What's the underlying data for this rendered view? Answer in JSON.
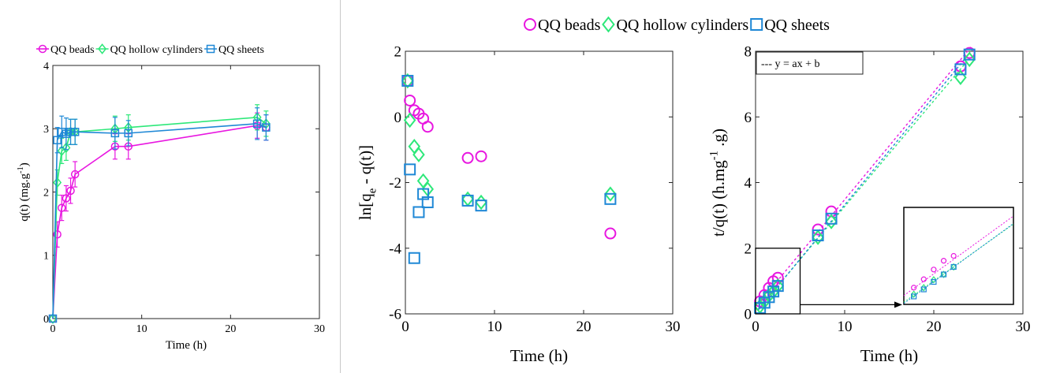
{
  "colors": {
    "beads": "#e817e0",
    "hollow": "#2ee87a",
    "sheets": "#1f88d6"
  },
  "chart_data": [
    {
      "type": "line",
      "panel": "left",
      "xlabel": "Time (h)",
      "ylabel_main": "q(t) (mg.g",
      "ylabel_sup": "-1",
      "ylabel_end": ")",
      "xlim": [
        0,
        30
      ],
      "ylim": [
        0,
        4
      ],
      "xticks": [
        "0",
        "10",
        "20",
        "30"
      ],
      "yticks": [
        "0",
        "1",
        "2",
        "3",
        "4"
      ],
      "legend": [
        "QQ beads",
        "QQ hollow cylinders",
        "QQ sheets"
      ],
      "legend_position": "top",
      "grid": false,
      "series": [
        {
          "name": "QQ beads",
          "marker": "circle",
          "x": [
            0,
            0.5,
            1,
            1.5,
            2,
            2.5,
            7,
            8.5,
            23,
            24
          ],
          "y": [
            0,
            1.33,
            1.75,
            1.9,
            2.02,
            2.28,
            2.72,
            2.72,
            3.05,
            3.02
          ],
          "err": [
            0,
            0.2,
            0.2,
            0.2,
            0.2,
            0.2,
            0.2,
            0.2,
            0.2,
            0.2
          ]
        },
        {
          "name": "QQ hollow cylinders",
          "marker": "diamond",
          "x": [
            0,
            0.5,
            1,
            1.5,
            2,
            2.5,
            7,
            8.5,
            23,
            24
          ],
          "y": [
            0,
            2.15,
            2.65,
            2.7,
            2.95,
            2.95,
            3.0,
            3.02,
            3.18,
            3.08
          ],
          "err": [
            0,
            0.2,
            0.2,
            0.2,
            0.2,
            0.2,
            0.2,
            0.2,
            0.2,
            0.2
          ]
        },
        {
          "name": "QQ sheets",
          "marker": "square",
          "x": [
            0,
            0.5,
            1,
            1.5,
            2,
            2.5,
            7,
            8.5,
            23,
            24
          ],
          "y": [
            0,
            2.82,
            2.95,
            2.92,
            2.95,
            2.95,
            2.93,
            2.93,
            3.08,
            3.02
          ],
          "err": [
            0,
            0.2,
            0.25,
            0.25,
            0.2,
            0.2,
            0.25,
            0.2,
            0.25,
            0.2
          ]
        }
      ]
    },
    {
      "type": "scatter",
      "panel": "middle",
      "xlabel": "Time (h)",
      "ylabel_main": "ln[q",
      "ylabel_sub": "e",
      "ylabel_end": " - q(t)]",
      "xlim": [
        0,
        30
      ],
      "ylim": [
        -6,
        2
      ],
      "xticks": [
        "0",
        "10",
        "20",
        "30"
      ],
      "yticks": [
        "-6",
        "-4",
        "-2",
        "0",
        "2"
      ],
      "grid": false,
      "series": [
        {
          "name": "QQ beads",
          "marker": "circle",
          "x": [
            0.25,
            0.5,
            1,
            1.5,
            2,
            2.5,
            7,
            8.5,
            23
          ],
          "y": [
            1.1,
            0.5,
            0.2,
            0.1,
            -0.05,
            -0.3,
            -1.25,
            -1.2,
            -3.55
          ]
        },
        {
          "name": "QQ hollow cylinders",
          "marker": "diamond",
          "x": [
            0.25,
            0.5,
            1,
            1.5,
            2,
            2.5,
            7,
            8.5,
            23
          ],
          "y": [
            1.1,
            -0.1,
            -0.9,
            -1.15,
            -1.95,
            -2.2,
            -2.5,
            -2.6,
            -2.35
          ]
        },
        {
          "name": "QQ sheets",
          "marker": "square",
          "x": [
            0.25,
            0.5,
            1,
            1.5,
            2,
            2.5,
            7,
            8.5,
            23
          ],
          "y": [
            1.1,
            -1.6,
            -4.3,
            -2.9,
            -2.35,
            -2.6,
            -2.55,
            -2.7,
            -2.5
          ]
        }
      ]
    },
    {
      "type": "scatter",
      "panel": "right",
      "xlabel": "Time (h)",
      "ylabel_main": "t/q(t) (h.mg",
      "ylabel_sup": "-1",
      "ylabel_end": " .g)",
      "xlim": [
        0,
        30
      ],
      "ylim": [
        0,
        8
      ],
      "xticks": [
        "0",
        "10",
        "20",
        "30"
      ],
      "yticks": [
        "0",
        "2",
        "4",
        "6",
        "8"
      ],
      "annotation": "--- y = ax + b",
      "grid": false,
      "series": [
        {
          "name": "QQ beads",
          "marker": "circle",
          "x": [
            0.5,
            1,
            1.5,
            2,
            2.5,
            7,
            8.5,
            23,
            24
          ],
          "y": [
            0.38,
            0.57,
            0.79,
            0.99,
            1.1,
            2.57,
            3.12,
            7.54,
            7.95
          ],
          "fit": {
            "a": 0.328,
            "b": 0.2
          }
        },
        {
          "name": "QQ hollow cylinders",
          "marker": "diamond",
          "x": [
            0.5,
            1,
            1.5,
            2,
            2.5,
            7,
            8.5,
            23,
            24
          ],
          "y": [
            0.23,
            0.38,
            0.56,
            0.68,
            0.85,
            2.33,
            2.81,
            7.2,
            7.75
          ],
          "fit": {
            "a": 0.322,
            "b": 0.05
          }
        },
        {
          "name": "QQ sheets",
          "marker": "square",
          "x": [
            0.5,
            1,
            1.5,
            2,
            2.5,
            7,
            8.5,
            23,
            24
          ],
          "y": [
            0.18,
            0.34,
            0.51,
            0.68,
            0.85,
            2.39,
            2.9,
            7.45,
            7.9
          ],
          "fit": {
            "a": 0.33,
            "b": 0.02
          }
        }
      ],
      "inset_range": {
        "x": [
          0,
          5
        ],
        "y": [
          0,
          2
        ]
      }
    }
  ],
  "shared_legend": [
    "QQ beads",
    "QQ hollow cylinders",
    "QQ sheets"
  ]
}
